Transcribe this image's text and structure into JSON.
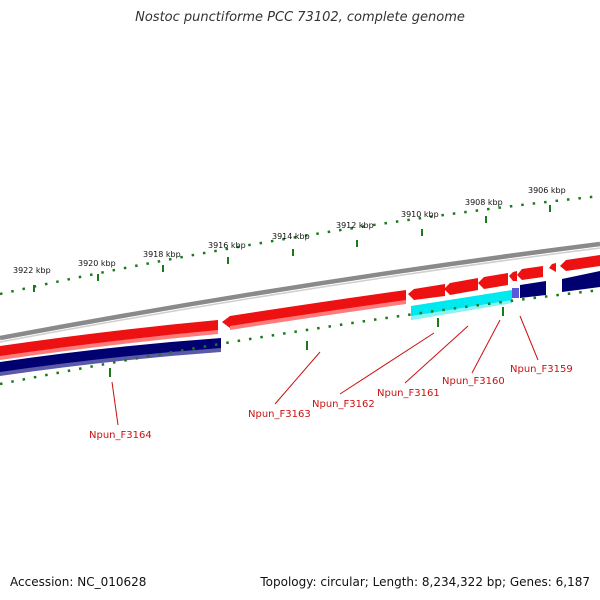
{
  "title": "Nostoc punctiforme PCC 73102, complete genome",
  "footer": {
    "accession": "Accession: NC_010628",
    "topology": "Topology: circular; Length: 8,234,322 bp; Genes: 6,187"
  },
  "scale_labels": [
    "3906 kbp",
    "3908 kbp",
    "3910 kbp",
    "3912 kbp",
    "3914 kbp",
    "3916 kbp",
    "3918 kbp",
    "3920 kbp",
    "3922 kbp"
  ],
  "gene_labels": [
    "Npun_F3159",
    "Npun_F3160",
    "Npun_F3161",
    "Npun_F3162",
    "Npun_F3163",
    "Npun_F3164"
  ],
  "colors": {
    "forward_gene": "#ee1111",
    "reverse_gene": "#000070",
    "highlight_gene": "#00e8f0",
    "backbone": "#888888",
    "ticks": "#1a7a1a",
    "label": "#cc1111"
  }
}
